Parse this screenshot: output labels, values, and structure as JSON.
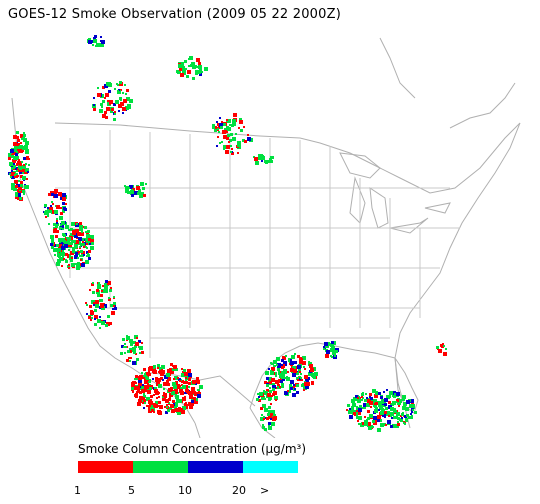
{
  "title": "GOES-12 Smoke Observation (2009 05 22  2000Z)",
  "legend": {
    "title": "Smoke Column Concentration (µg/m³)",
    "bins": [
      {
        "color": "#ff0000"
      },
      {
        "color": "#00e040"
      },
      {
        "color": "#0000cc"
      },
      {
        "color": "#00ffff"
      }
    ],
    "ticks": [
      "1",
      "5",
      "10",
      "20",
      ">"
    ]
  },
  "map": {
    "region": "Contiguous United States",
    "line_color": "#b0b0b0"
  }
}
